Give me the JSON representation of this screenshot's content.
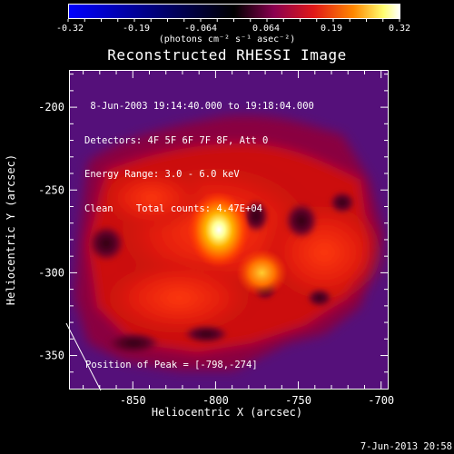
{
  "colorbar": {
    "ticks": [
      "-0.32",
      "-0.19",
      "-0.064",
      "0.064",
      "0.19",
      "0.32"
    ],
    "tick_values": [
      -0.32,
      -0.19,
      -0.064,
      0.064,
      0.19,
      0.32
    ],
    "units": "(photons cm⁻² s⁻¹ asec⁻²)",
    "colors": [
      "#0000ff",
      "#000000",
      "#8a0060",
      "#e02020",
      "#ff8800",
      "#ffff80",
      "#ffffff"
    ]
  },
  "chart_data": {
    "type": "heatmap",
    "title": "Reconstructed RHESSI Image",
    "xlabel": "Heliocentric X (arcsec)",
    "ylabel": "Heliocentric Y (arcsec)",
    "xlim": [
      -888,
      -696
    ],
    "ylim": [
      -370,
      -178
    ],
    "xticks": [
      -850,
      -800,
      -750,
      -700
    ],
    "yticks": [
      -200,
      -250,
      -300,
      -350
    ],
    "annotation_lines": [
      " 8-Jun-2003 19:14:40.000 to 19:18:04.000",
      "Detectors: 4F 5F 6F 7F 8F, Att 0",
      "Energy Range: 3.0 - 6.0 keV",
      "Clean    Total counts: 4.47E+04"
    ],
    "peak_label": "Position of Peak = [-798,-274]",
    "peak": [
      -798,
      -274
    ],
    "secondary_peak": [
      -772,
      -300
    ],
    "max_value": 0.32,
    "min_value": -0.32
  },
  "footer": {
    "datestamp": "7-Jun-2013 20:58"
  }
}
